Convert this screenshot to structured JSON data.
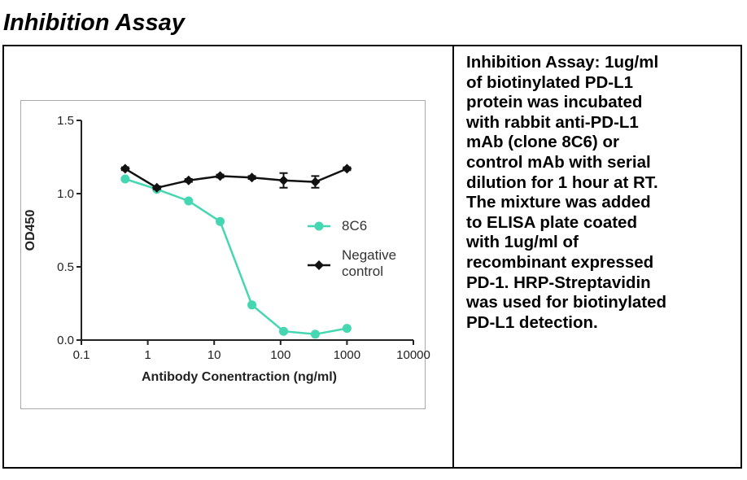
{
  "title": "Inhibition Assay",
  "chart_data": {
    "type": "line",
    "xlabel": "Antibody Conentraction (ng/ml)",
    "ylabel": "OD450",
    "x": [
      0.457,
      1.37,
      4.12,
      12.3,
      37,
      111,
      333,
      1000
    ],
    "series": [
      {
        "name": "8C6",
        "color": "#45d6b2",
        "marker": "circle",
        "values": [
          1.1,
          1.03,
          0.95,
          0.81,
          0.24,
          0.06,
          0.04,
          0.08
        ]
      },
      {
        "name": "Negative control",
        "color": "#111111",
        "marker": "diamond",
        "values": [
          1.17,
          1.04,
          1.09,
          1.12,
          1.11,
          1.09,
          1.08,
          1.17
        ],
        "errors": [
          0.01,
          0.01,
          0.01,
          0.01,
          0.01,
          0.05,
          0.04,
          0.01
        ]
      }
    ],
    "xscale": "log",
    "xlim": [
      0.1,
      10000
    ],
    "xticks": [
      0.1,
      1,
      10,
      100,
      1000,
      10000
    ],
    "ylim": [
      0,
      1.5
    ],
    "yticks": [
      {
        "value": 0,
        "label": "0.0"
      },
      0.5,
      {
        "value": 1,
        "label": "1.0"
      },
      1.5
    ],
    "legend": "right"
  },
  "description_lines": [
    "Inhibition Assay: 1ug/ml",
    "of biotinylated PD-L1",
    "protein was incubated",
    "with rabbit anti-PD-L1",
    "mAb (clone 8C6) or",
    "control mAb with serial",
    "dilution for 1 hour at RT.",
    "The mixture was added",
    "to ELISA plate coated",
    "with 1ug/ml of",
    "recombinant expressed",
    "PD-1. HRP-Streptavidin",
    "was used for biotinylated",
    "PD-L1 detection."
  ]
}
